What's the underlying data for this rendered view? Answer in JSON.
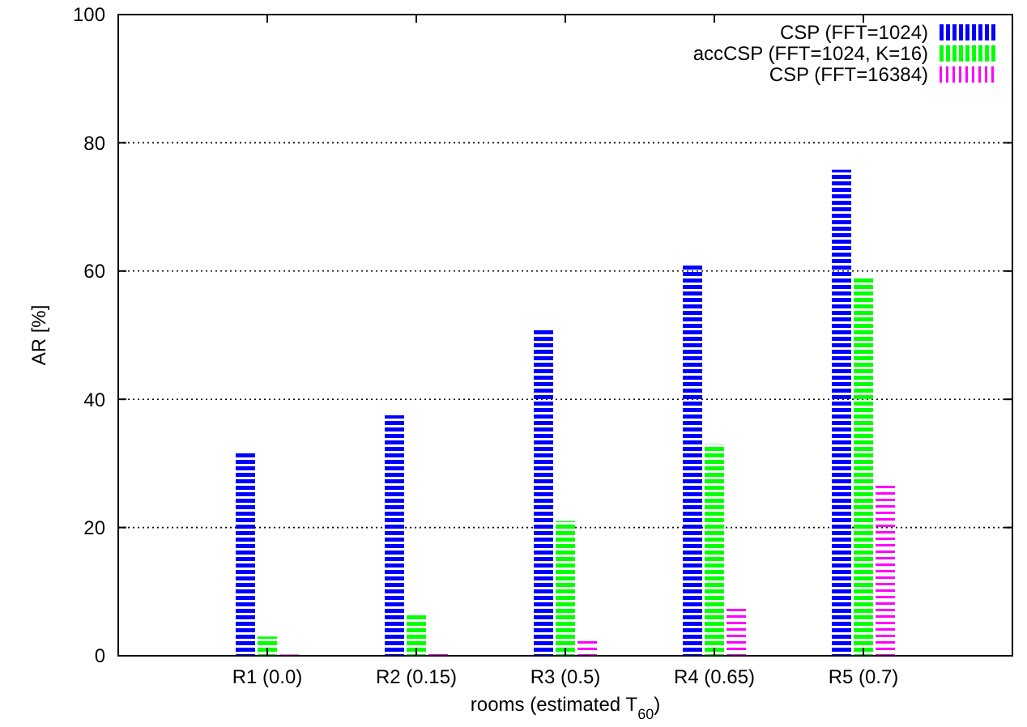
{
  "chart_data": {
    "type": "bar",
    "xlabel": "rooms (estimated T$_{60}$)",
    "ylabel": "AR [%]",
    "categories": [
      "R1 (0.0)",
      "R2 (0.15)",
      "R3 (0.5)",
      "R4 (0.65)",
      "R5 (0.7)"
    ],
    "series": [
      {
        "name": "CSP (FFT=1024)",
        "color": "#0000ff",
        "values": [
          31.7,
          37.5,
          51,
          61,
          75.8
        ]
      },
      {
        "name": "accCSP (FFT=1024, K=16)",
        "color": "#00ff00",
        "values": [
          3,
          6.3,
          21,
          33,
          59
        ]
      },
      {
        "name": "CSP (FFT=16384)",
        "color": "#ff00ff",
        "values": [
          0.2,
          0.8,
          2.5,
          7.5,
          27
        ]
      }
    ],
    "ylim": [
      0,
      100
    ],
    "yticks": [
      0,
      20,
      40,
      60,
      80,
      100
    ],
    "grid": "y",
    "legend": "top right"
  }
}
